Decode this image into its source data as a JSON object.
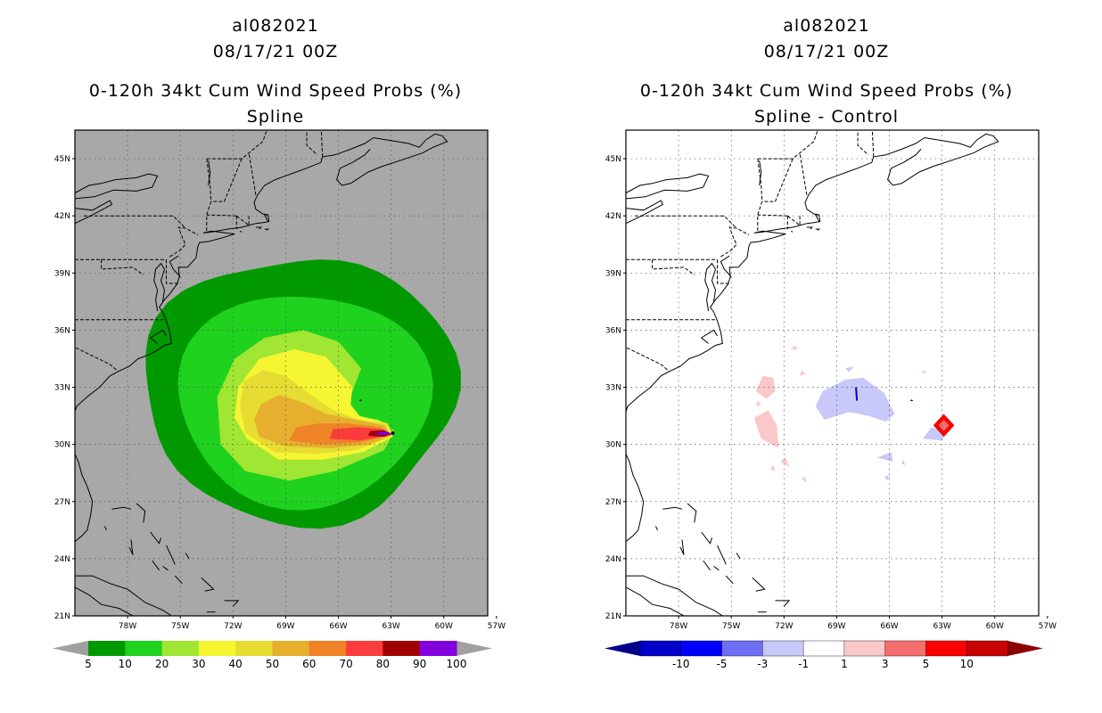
{
  "panels": [
    {
      "storm_id": "al082021",
      "datetime": "08/17/21 00Z",
      "title": "0-120h 34kt Cum Wind Speed Probs (%)",
      "subtitle": "Spline"
    },
    {
      "storm_id": "al082021",
      "datetime": "08/17/21 00Z",
      "title": "0-120h 34kt Cum Wind Speed Probs (%)",
      "subtitle": "Spline - Control"
    }
  ],
  "axes": {
    "lat_ticks": [
      "45N",
      "42N",
      "39N",
      "36N",
      "33N",
      "30N",
      "27N",
      "24N",
      "21N"
    ],
    "lon_ticks": [
      "78W",
      "75W",
      "72W",
      "69W",
      "66W",
      "63W",
      "60W",
      "57W"
    ],
    "lat_range": [
      21,
      46.5
    ],
    "lon_range": [
      -81,
      -57.5
    ]
  },
  "chart_data": [
    {
      "type": "heatmap",
      "title": "0-120h 34kt Cum Wind Speed Probs (%) — Spline",
      "units": "%",
      "colorbar": {
        "labels": [
          "5",
          "10",
          "20",
          "30",
          "40",
          "50",
          "60",
          "70",
          "80",
          "90",
          "100"
        ],
        "colors": [
          "#009a00",
          "#1ed21e",
          "#a0e632",
          "#f5f532",
          "#e6dc32",
          "#e6af2d",
          "#f08228",
          "#fa3c3c",
          "#a00000",
          "#8200dc"
        ],
        "under_color": "#a0a0a0",
        "over_color": "#a0a0a0"
      },
      "storm_center": {
        "lat": 30.6,
        "lon": -62.9
      }
    },
    {
      "type": "heatmap",
      "title": "0-120h 34kt Cum Wind Speed Probs (%) — Spline - Control",
      "units": "%",
      "colorbar": {
        "labels": [
          "-10",
          "-5",
          "-3",
          "-1",
          "1",
          "3",
          "5",
          "10"
        ],
        "colors": [
          "#0000c8",
          "#0000fa",
          "#6e6ef5",
          "#c8c8fa",
          "#ffffff",
          "#fac8c8",
          "#f56e6e",
          "#fa0000",
          "#c80000"
        ],
        "under_color": "#00008c",
        "over_color": "#8c0000"
      },
      "difference_marker": {
        "lat": 31.0,
        "lon": -62.9
      }
    }
  ]
}
